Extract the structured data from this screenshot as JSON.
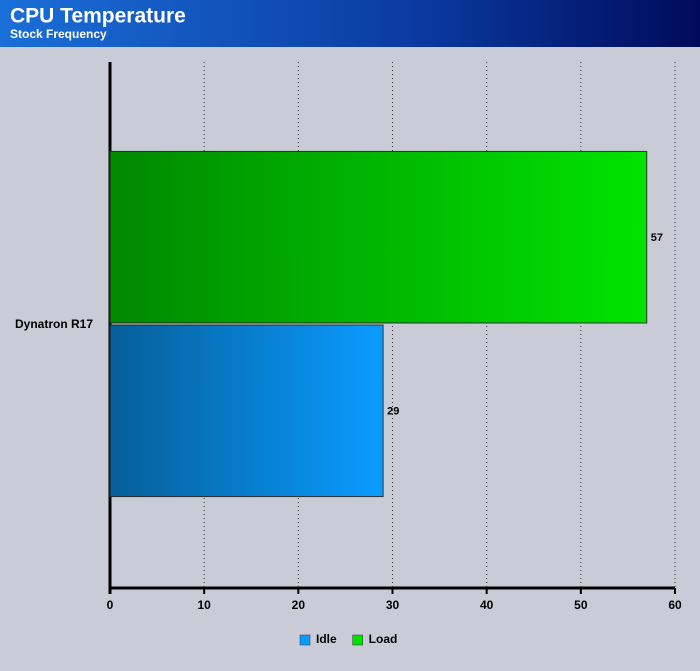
{
  "chart_data": {
    "type": "hbar",
    "title": "CPU Temperature",
    "subtitle": "Stock Frequency",
    "categories": [
      "Dynatron R17"
    ],
    "series": [
      {
        "name": "Idle",
        "color": "#0a9cff",
        "values": [
          29
        ]
      },
      {
        "name": "Load",
        "color": "#00e400",
        "values": [
          57
        ]
      }
    ],
    "xlim": [
      0,
      60
    ],
    "xticks": [
      0,
      10,
      20,
      30,
      40,
      50,
      60
    ],
    "grid": true,
    "legend": "bottom"
  }
}
